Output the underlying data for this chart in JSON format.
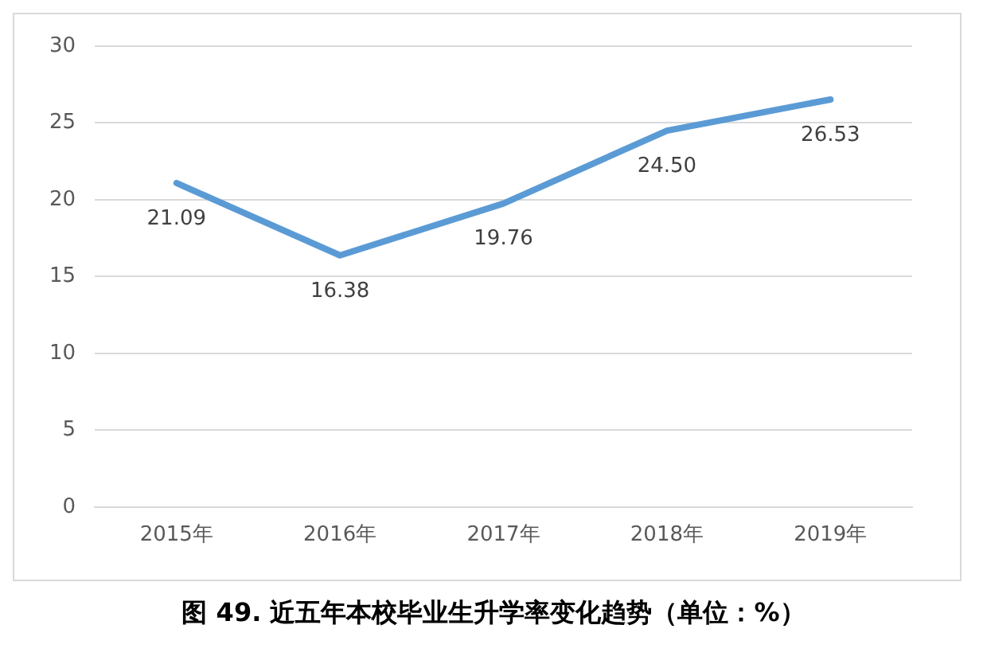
{
  "chart_data": {
    "type": "line",
    "title": "图 49. 近五年本校毕业生升学率变化趋势（单位：%）",
    "categories": [
      "2015年",
      "2016年",
      "2017年",
      "2018年",
      "2019年"
    ],
    "series": [
      {
        "color": "#5b9bd5",
        "values": [
          21.09,
          16.38,
          19.76,
          24.5,
          26.53
        ],
        "value_labels": [
          "21.09",
          "16.38",
          "19.76",
          "24.50",
          "26.53"
        ]
      }
    ],
    "ylim": [
      0,
      30
    ],
    "yticks": [
      0,
      5,
      10,
      15,
      20,
      25,
      30
    ],
    "grid": "y",
    "legend": false,
    "marker": "none",
    "line_style": "solid"
  }
}
